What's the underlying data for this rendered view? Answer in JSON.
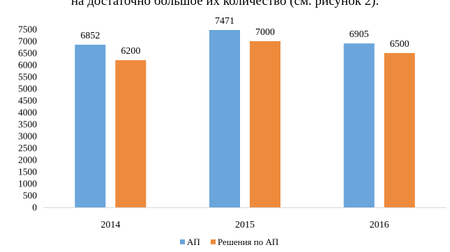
{
  "caption_fragment": "на достаточно большое их количество (см. рисунок 2).",
  "chart_data": {
    "type": "bar",
    "categories": [
      "2014",
      "2015",
      "2016"
    ],
    "series": [
      {
        "name": "АП",
        "values": [
          6852,
          7471,
          6905
        ],
        "color": "#6aa5dc"
      },
      {
        "name": "Решения по АП",
        "values": [
          6200,
          7000,
          6500
        ],
        "color": "#ee8a3c"
      }
    ],
    "ylim": [
      0,
      7500
    ],
    "yticks": [
      "0",
      "500",
      "1000",
      "1500",
      "2000",
      "2500",
      "3000",
      "3500",
      "4000",
      "4500",
      "5000",
      "5500",
      "6000",
      "6500",
      "7000",
      "7500"
    ],
    "grid": false,
    "legend_position": "bottom",
    "data_labels": true
  }
}
